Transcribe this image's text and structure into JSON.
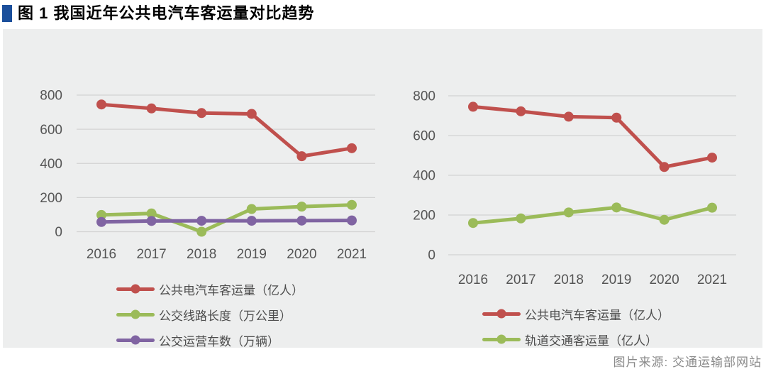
{
  "title": {
    "text": "图 1 我国近年公共电汽车客运量对比趋势",
    "marker_color": "#1b4f9b"
  },
  "source_note": "图片来源: 交通运输部网站",
  "panel": {
    "background": "#edeeee",
    "grid_color": "#d3d3d3",
    "tick_text_color": "#555555",
    "legend_text_color": "#4d4d4d"
  },
  "chart_data": [
    {
      "type": "line",
      "id": "left",
      "title": "",
      "xlabel": "",
      "ylabel": "",
      "categories": [
        "2016",
        "2017",
        "2018",
        "2019",
        "2020",
        "2021"
      ],
      "y_ticks": [
        0,
        200,
        400,
        600,
        800
      ],
      "ylim": [
        0,
        800
      ],
      "grid": true,
      "legend_position": "bottom",
      "series": [
        {
          "name": "公共电汽车客运量（亿人）",
          "color": "#c0504d",
          "values": [
            745,
            722,
            695,
            690,
            442,
            489
          ]
        },
        {
          "name": "公交线路长度（万公里）",
          "color": "#9bbb59",
          "values": [
            98,
            107,
            0,
            133,
            147,
            157
          ]
        },
        {
          "name": "公交运营车数（万辆）",
          "color": "#8064a2",
          "values": [
            57,
            63,
            64,
            64,
            65,
            66
          ]
        }
      ]
    },
    {
      "type": "line",
      "id": "right",
      "title": "",
      "xlabel": "",
      "ylabel": "",
      "categories": [
        "2016",
        "2017",
        "2018",
        "2019",
        "2020",
        "2021"
      ],
      "y_ticks": [
        0,
        200,
        400,
        600,
        800
      ],
      "ylim": [
        0,
        800
      ],
      "grid": true,
      "legend_position": "bottom",
      "series": [
        {
          "name": "公共电汽车客运量（亿人）",
          "color": "#c0504d",
          "values": [
            745,
            722,
            695,
            690,
            442,
            489
          ]
        },
        {
          "name": "轨道交通客运量（亿人）",
          "color": "#9bbb59",
          "values": [
            160,
            183,
            213,
            238,
            176,
            237
          ]
        }
      ]
    }
  ]
}
